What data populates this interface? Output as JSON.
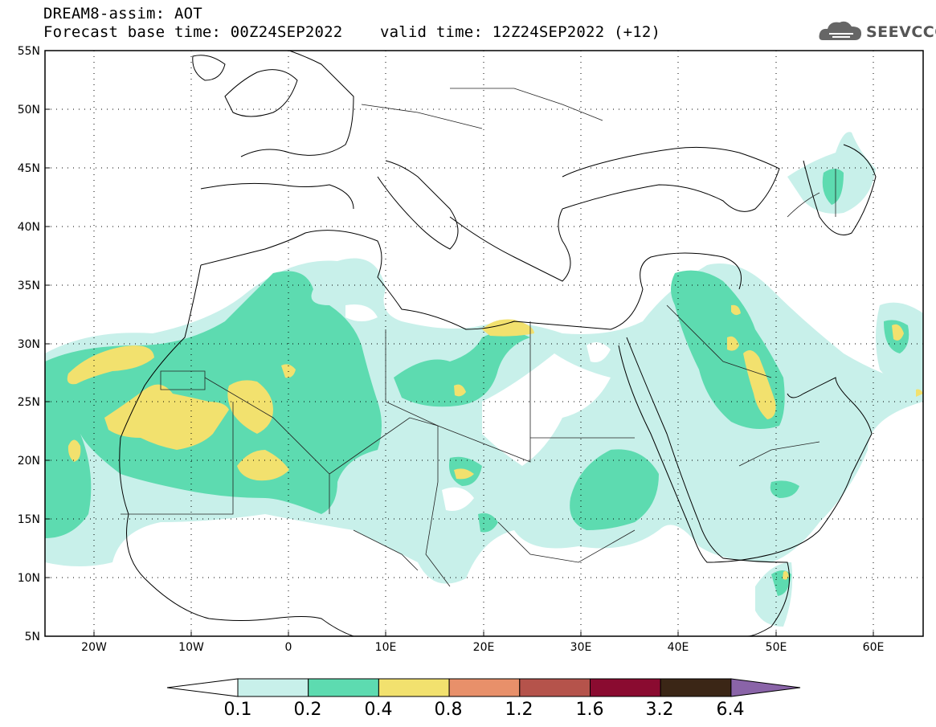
{
  "header": {
    "line1": "DREAM8-assim: AOT",
    "line2": "Forecast base time: 00Z24SEP2022    valid time: 12Z24SEP2022 (+12)"
  },
  "logo": {
    "text": "SEEVCCC",
    "icon": "cloud-icon"
  },
  "map": {
    "lon_labels": [
      "20W",
      "10W",
      "0",
      "10E",
      "20E",
      "30E",
      "40E",
      "50E",
      "60E"
    ],
    "lat_labels": [
      "55N",
      "50N",
      "45N",
      "40N",
      "35N",
      "30N",
      "25N",
      "20N",
      "15N",
      "10N",
      "5N"
    ]
  },
  "legend": {
    "labels": [
      "0.1",
      "0.2",
      "0.4",
      "0.8",
      "1.2",
      "1.6",
      "3.2",
      "6.4"
    ],
    "colors": [
      "#ffffff",
      "#c8f0ea",
      "#5ddbb0",
      "#f2e16e",
      "#e8906a",
      "#b5534b",
      "#8a0b30",
      "#3b2616",
      "#8a64a8"
    ]
  }
}
